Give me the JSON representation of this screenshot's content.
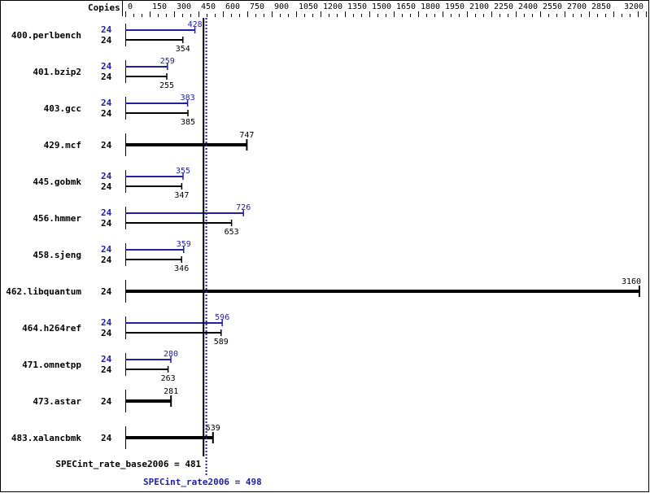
{
  "chart_data": {
    "type": "bar",
    "orientation": "horizontal",
    "copies_header": "Copies",
    "xlim": [
      0,
      3200
    ],
    "tick_labels": [
      "0",
      "150",
      "300",
      "450",
      "600",
      "750",
      "900",
      "1050",
      "1200",
      "1350",
      "1500",
      "1650",
      "1800",
      "1950",
      "2100",
      "2250",
      "2400",
      "2550",
      "2700",
      "2850",
      "3200"
    ],
    "tick_values": [
      0,
      150,
      300,
      450,
      600,
      750,
      900,
      1050,
      1200,
      1350,
      1500,
      1650,
      1800,
      1950,
      2100,
      2250,
      2400,
      2550,
      2700,
      2850,
      3200
    ],
    "colors": {
      "peak": "#2020a0",
      "base": "#000000"
    },
    "benchmarks": [
      {
        "name": "400.perlbench",
        "peak_copies": "24",
        "peak": 428,
        "base_copies": "24",
        "base": 354
      },
      {
        "name": "401.bzip2",
        "peak_copies": "24",
        "peak": 259,
        "base_copies": "24",
        "base": 255
      },
      {
        "name": "403.gcc",
        "peak_copies": "24",
        "peak": 383,
        "base_copies": "24",
        "base": 385
      },
      {
        "name": "429.mcf",
        "base_copies": "24",
        "base": 747
      },
      {
        "name": "445.gobmk",
        "peak_copies": "24",
        "peak": 355,
        "base_copies": "24",
        "base": 347
      },
      {
        "name": "456.hmmer",
        "peak_copies": "24",
        "peak": 726,
        "base_copies": "24",
        "base": 653
      },
      {
        "name": "458.sjeng",
        "peak_copies": "24",
        "peak": 359,
        "base_copies": "24",
        "base": 346
      },
      {
        "name": "462.libquantum",
        "base_copies": "24",
        "base": 3160
      },
      {
        "name": "464.h264ref",
        "peak_copies": "24",
        "peak": 596,
        "base_copies": "24",
        "base": 589
      },
      {
        "name": "471.omnetpp",
        "peak_copies": "24",
        "peak": 280,
        "base_copies": "24",
        "base": 263
      },
      {
        "name": "473.astar",
        "base_copies": "24",
        "base": 281
      },
      {
        "name": "483.xalancbmk",
        "base_copies": "24",
        "base": 539
      }
    ],
    "base_summary": {
      "label": "SPECint_rate_base2006 = 481",
      "value": 481
    },
    "peak_summary": {
      "label": "SPECint_rate2006 = 498",
      "value": 498
    }
  }
}
